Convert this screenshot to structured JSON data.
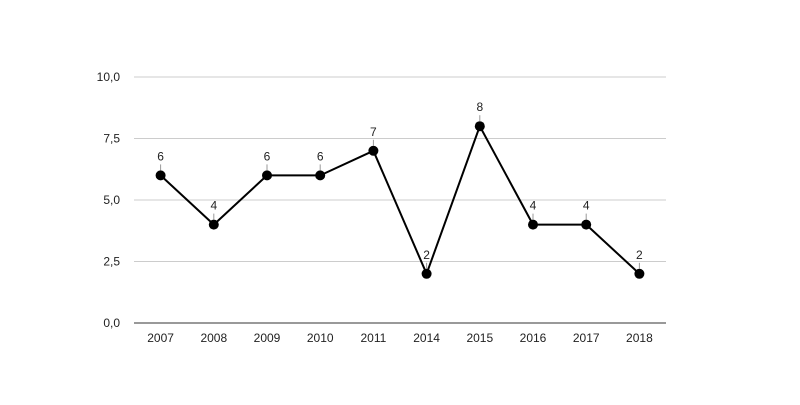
{
  "chart_data": {
    "type": "line",
    "title": "",
    "xlabel": "",
    "ylabel": "",
    "categories": [
      "2007",
      "2008",
      "2009",
      "2010",
      "2011",
      "2014",
      "2015",
      "2016",
      "2017",
      "2018"
    ],
    "series": [
      {
        "values": [
          6,
          4,
          6,
          6,
          7,
          2,
          8,
          4,
          4,
          2
        ]
      }
    ],
    "data_labels": [
      "6",
      "4",
      "6",
      "6",
      "7",
      "2",
      "8",
      "4",
      "4",
      "2"
    ],
    "ylim": [
      0,
      10
    ],
    "yticks": [
      0,
      2.5,
      5,
      7.5,
      10
    ],
    "ytick_labels": [
      "0,0",
      "2,5",
      "5,0",
      "7,5",
      "10,0"
    ],
    "grid": true,
    "legend": "none",
    "colors": {
      "line": "#000000",
      "marker": "#000000",
      "grid": "#cccccc",
      "axis": "#333333",
      "text": "#222222"
    }
  }
}
